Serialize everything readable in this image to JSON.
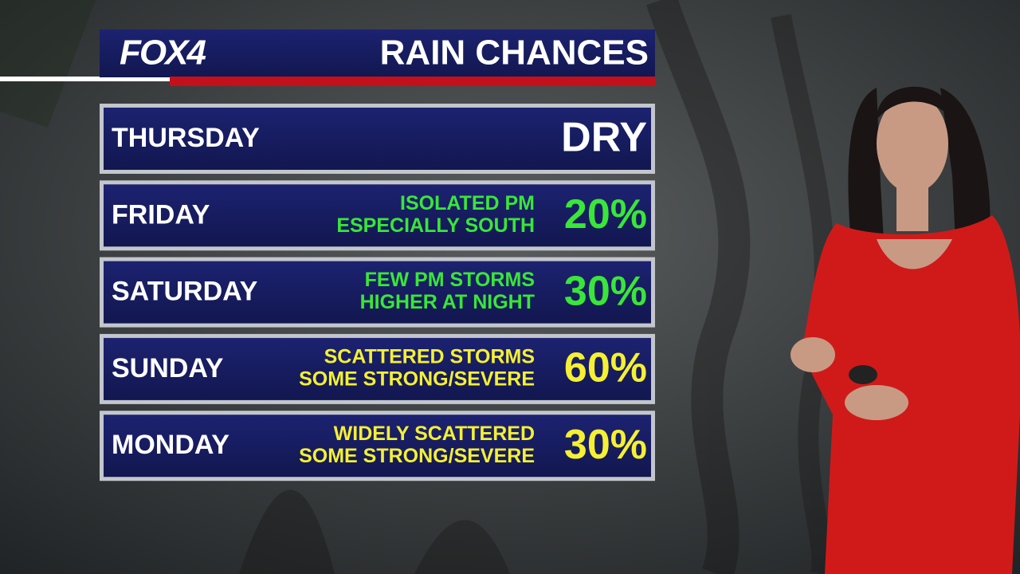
{
  "header": {
    "logo": "FOX4",
    "title": "RAIN CHANCES"
  },
  "table": {
    "rows": [
      {
        "day": "THURSDAY",
        "notes": [],
        "chance": "DRY",
        "color": "#ffffff"
      },
      {
        "day": "FRIDAY",
        "notes": [
          "ISOLATED PM",
          "ESPECIALLY SOUTH"
        ],
        "chance": "20%",
        "color": "#39e639"
      },
      {
        "day": "SATURDAY",
        "notes": [
          "FEW PM STORMS",
          "HIGHER AT NIGHT"
        ],
        "chance": "30%",
        "color": "#39e639"
      },
      {
        "day": "SUNDAY",
        "notes": [
          "SCATTERED STORMS",
          "SOME STRONG/SEVERE"
        ],
        "chance": "60%",
        "color": "#f5f032"
      },
      {
        "day": "MONDAY",
        "notes": [
          "WIDELY SCATTERED",
          "SOME STRONG/SEVERE"
        ],
        "chance": "30%",
        "color": "#f5f032"
      }
    ]
  }
}
